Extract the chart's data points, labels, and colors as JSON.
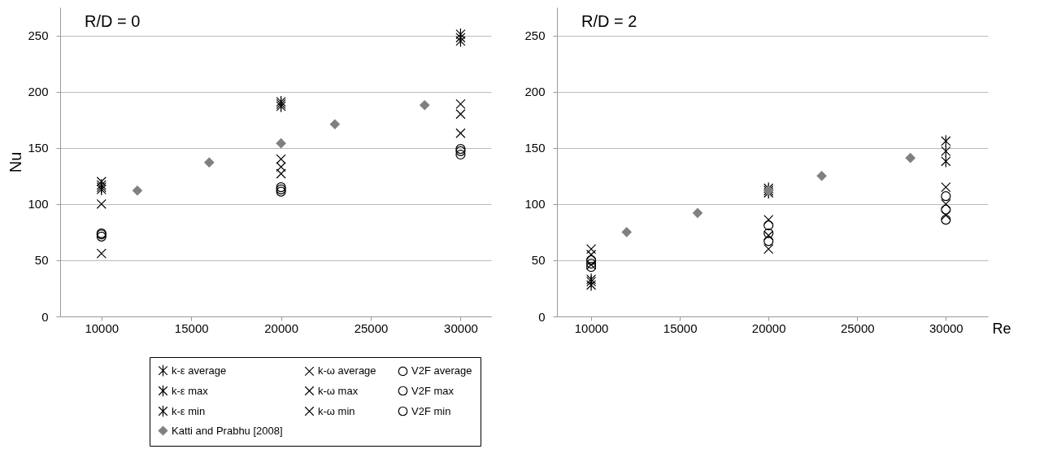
{
  "chart_data": [
    {
      "type": "scatter",
      "title": "R/D = 0",
      "ylabel": "Nu",
      "xlim": [
        7700,
        31700
      ],
      "xticks": [
        10000,
        15000,
        20000,
        25000,
        30000
      ],
      "ylim": [
        0,
        275
      ],
      "yticks": [
        0,
        50,
        100,
        150,
        200,
        250
      ],
      "grid": "y",
      "legend": "bottom",
      "series": [
        {
          "name": "k-ε average",
          "color": "#000000",
          "x": [
            10000,
            20000,
            30000
          ],
          "values": [
            115,
            189,
            248
          ]
        },
        {
          "name": "k-ω average",
          "color": "#000000",
          "marker": "cross",
          "x": [
            10000,
            20000,
            30000
          ],
          "values": [
            100,
            133,
            180
          ]
        },
        {
          "name": "V2F average",
          "color": "#000000",
          "marker": "circle",
          "x": [
            10000,
            20000,
            30000
          ],
          "values": [
            73,
            113,
            147
          ]
        },
        {
          "name": "k-ε max",
          "color": "#000000",
          "x": [
            10000,
            20000,
            30000
          ],
          "values": [
            117,
            191,
            251
          ]
        },
        {
          "name": "k-ω max",
          "color": "#000000",
          "marker": "cross",
          "x": [
            10000,
            20000,
            30000
          ],
          "values": [
            120,
            140,
            189
          ]
        },
        {
          "name": "V2F max",
          "color": "#000000",
          "marker": "circle",
          "x": [
            10000,
            20000,
            30000
          ],
          "values": [
            74,
            115,
            149
          ]
        },
        {
          "name": "k-ε min",
          "color": "#000000",
          "x": [
            10000,
            20000,
            30000
          ],
          "values": [
            113,
            187,
            245
          ]
        },
        {
          "name": "k-ω min",
          "color": "#000000",
          "marker": "cross",
          "x": [
            10000,
            20000,
            30000
          ],
          "values": [
            56,
            127,
            163
          ]
        },
        {
          "name": "V2F min",
          "color": "#000000",
          "marker": "circle",
          "x": [
            10000,
            20000,
            30000
          ],
          "values": [
            71,
            111,
            144
          ]
        },
        {
          "name": "Katti and Prabhu [2008]",
          "color": "#808080",
          "marker": "diamond",
          "x": [
            12000,
            16000,
            20000,
            23000,
            28000
          ],
          "values": [
            112,
            137,
            154,
            171,
            188
          ]
        }
      ]
    },
    {
      "type": "scatter",
      "title": "R/D = 2",
      "xlabel": "Re",
      "xlim": [
        8070,
        32370
      ],
      "xticks": [
        10000,
        15000,
        20000,
        25000,
        30000
      ],
      "ylim": [
        0,
        275
      ],
      "yticks": [
        0,
        50,
        100,
        150,
        200,
        250
      ],
      "grid": "y",
      "series": [
        {
          "color": "#000000",
          "x": [
            10000,
            20000,
            30000
          ],
          "values": [
            31,
            112,
            147
          ]
        },
        {
          "color": "#000000",
          "marker": "cross",
          "x": [
            10000,
            20000,
            30000
          ],
          "values": [
            55,
            72,
            100
          ]
        },
        {
          "color": "#000000",
          "marker": "circle",
          "x": [
            10000,
            20000,
            30000
          ],
          "values": [
            47,
            74,
            95
          ]
        },
        {
          "color": "#000000",
          "x": [
            10000,
            20000,
            30000
          ],
          "values": [
            33,
            114,
            156
          ]
        },
        {
          "color": "#000000",
          "marker": "cross",
          "x": [
            10000,
            20000,
            30000
          ],
          "values": [
            60,
            86,
            115
          ]
        },
        {
          "color": "#000000",
          "marker": "circle",
          "x": [
            10000,
            20000,
            30000
          ],
          "values": [
            50,
            81,
            107
          ]
        },
        {
          "color": "#000000",
          "x": [
            10000,
            20000,
            30000
          ],
          "values": [
            28,
            110,
            138
          ]
        },
        {
          "color": "#000000",
          "marker": "cross",
          "x": [
            10000,
            20000,
            30000
          ],
          "values": [
            46,
            60,
            90
          ]
        },
        {
          "color": "#000000",
          "marker": "circle",
          "x": [
            10000,
            20000,
            30000
          ],
          "values": [
            44,
            67,
            86
          ]
        },
        {
          "color": "#808080",
          "marker": "diamond",
          "x": [
            12000,
            16000,
            20000,
            23000,
            28000
          ],
          "values": [
            75,
            92,
            112,
            125,
            141
          ]
        }
      ]
    }
  ]
}
